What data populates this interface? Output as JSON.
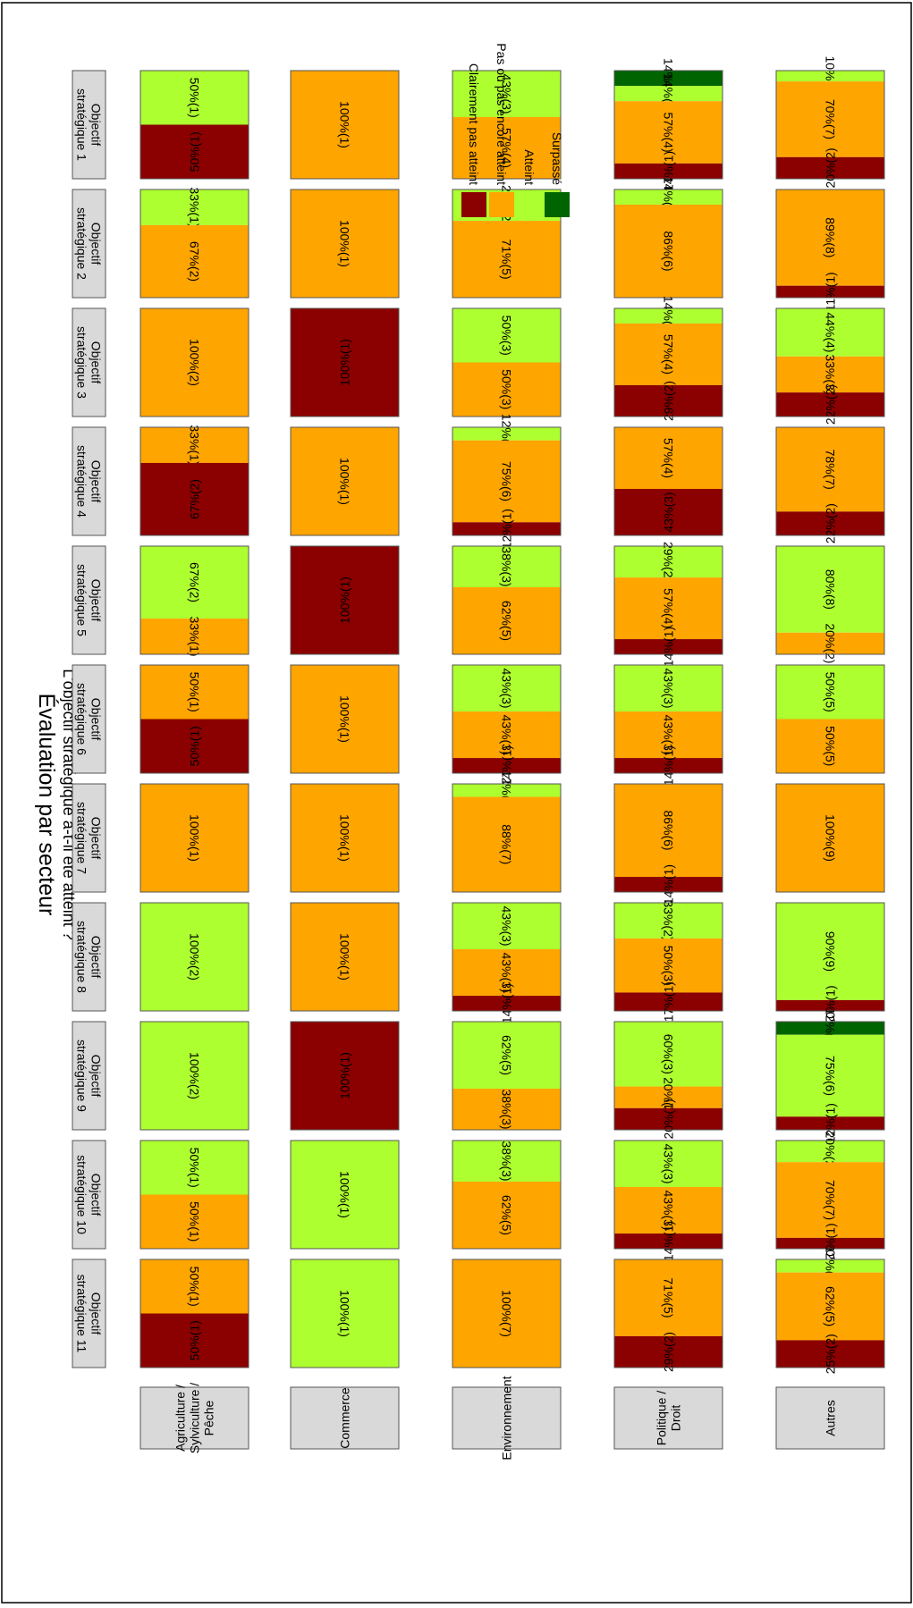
{
  "chart_data": {
    "type": "bar",
    "stacked": true,
    "normalized_percent": true,
    "title": "Évaluation par secteur",
    "subtitle": "L'objectif stratégique a-t-il été atteint ?",
    "legend": {
      "placement": "top-right",
      "items": [
        {
          "key": "surpasse",
          "label": "Surpassé",
          "color": "#006400"
        },
        {
          "key": "atteint",
          "label": "Atteint",
          "color": "#ADFF2F"
        },
        {
          "key": "pas",
          "label": "Pas ou pas encore atteint",
          "color": "#FFA500"
        },
        {
          "key": "clairement",
          "label": "Clairement pas atteint",
          "color": "#8B0000"
        }
      ]
    },
    "objectives": [
      "Objectif\nstratégique 1",
      "Objectif\nstratégique 2",
      "Objectif\nstratégique 3",
      "Objectif\nstratégique 4",
      "Objectif\nstratégique 5",
      "Objectif\nstratégique 6",
      "Objectif\nstratégique 7",
      "Objectif\nstratégique 8",
      "Objectif\nstratégique 9",
      "Objectif\nstratégique 10",
      "Objectif\nstratégique 11"
    ],
    "sectors": [
      {
        "name": "Agriculture /\nSylviculture /\nPêche",
        "cells": [
          [
            {
              "c": "atteint",
              "p": 50,
              "n": 1,
              "label": "50%(1)"
            },
            {
              "c": "clairement",
              "p": 50,
              "n": 1,
              "label": "50%(1)"
            }
          ],
          [
            {
              "c": "atteint",
              "p": 33,
              "n": 1,
              "label": "33%(1)"
            },
            {
              "c": "pas",
              "p": 67,
              "n": 2,
              "label": "67%(2)"
            }
          ],
          [
            {
              "c": "pas",
              "p": 100,
              "n": 2,
              "label": "100%(2)"
            }
          ],
          [
            {
              "c": "pas",
              "p": 33,
              "n": 1,
              "label": "33%(1)"
            },
            {
              "c": "clairement",
              "p": 67,
              "n": 2,
              "label": "67%(2)"
            }
          ],
          [
            {
              "c": "atteint",
              "p": 67,
              "n": 2,
              "label": "67%(2)"
            },
            {
              "c": "pas",
              "p": 33,
              "n": 1,
              "label": "33%(1)"
            }
          ],
          [
            {
              "c": "pas",
              "p": 50,
              "n": 1,
              "label": "50%(1)"
            },
            {
              "c": "clairement",
              "p": 50,
              "n": 1,
              "label": "50%(1)"
            }
          ],
          [
            {
              "c": "pas",
              "p": 100,
              "n": 1,
              "label": "100%(1)"
            }
          ],
          [
            {
              "c": "atteint",
              "p": 100,
              "n": 2,
              "label": "100%(2)"
            }
          ],
          [
            {
              "c": "atteint",
              "p": 100,
              "n": 2,
              "label": "100%(2)"
            }
          ],
          [
            {
              "c": "atteint",
              "p": 50,
              "n": 1,
              "label": "50%(1)"
            },
            {
              "c": "pas",
              "p": 50,
              "n": 1,
              "label": "50%(1)"
            }
          ],
          [
            {
              "c": "pas",
              "p": 50,
              "n": 1,
              "label": "50%(1)"
            },
            {
              "c": "clairement",
              "p": 50,
              "n": 1,
              "label": "50%(1)"
            }
          ]
        ]
      },
      {
        "name": "Commerce",
        "cells": [
          [
            {
              "c": "pas",
              "p": 100,
              "n": 1,
              "label": "100%(1)"
            }
          ],
          [
            {
              "c": "pas",
              "p": 100,
              "n": 1,
              "label": "100%(1)"
            }
          ],
          [
            {
              "c": "clairement",
              "p": 100,
              "n": 1,
              "label": "100%(1)"
            }
          ],
          [
            {
              "c": "pas",
              "p": 100,
              "n": 1,
              "label": "100%(1)"
            }
          ],
          [
            {
              "c": "clairement",
              "p": 100,
              "n": 1,
              "label": "100%(1)"
            }
          ],
          [
            {
              "c": "pas",
              "p": 100,
              "n": 1,
              "label": "100%(1)"
            }
          ],
          [
            {
              "c": "pas",
              "p": 100,
              "n": 1,
              "label": "100%(1)"
            }
          ],
          [
            {
              "c": "pas",
              "p": 100,
              "n": 1,
              "label": "100%(1)"
            }
          ],
          [
            {
              "c": "clairement",
              "p": 100,
              "n": 1,
              "label": "100%(1)"
            }
          ],
          [
            {
              "c": "atteint",
              "p": 100,
              "n": 1,
              "label": "100%(1)"
            }
          ],
          [
            {
              "c": "atteint",
              "p": 100,
              "n": 1,
              "label": "100%(1)"
            }
          ]
        ]
      },
      {
        "name": "Environnement",
        "cells": [
          [
            {
              "c": "atteint",
              "p": 43,
              "n": 3,
              "label": "43%(3)"
            },
            {
              "c": "pas",
              "p": 57,
              "n": 4,
              "label": "57%(4)"
            }
          ],
          [
            {
              "c": "atteint",
              "p": 29,
              "n": 2,
              "label": "29%(2)"
            },
            {
              "c": "pas",
              "p": 71,
              "n": 5,
              "label": "71%(5)"
            }
          ],
          [
            {
              "c": "atteint",
              "p": 50,
              "n": 3,
              "label": "50%(3)"
            },
            {
              "c": "pas",
              "p": 50,
              "n": 3,
              "label": "50%(3)"
            }
          ],
          [
            {
              "c": "atteint",
              "p": 12,
              "n": 1,
              "label": "12%(1)"
            },
            {
              "c": "pas",
              "p": 75,
              "n": 6,
              "label": "75%(6)"
            },
            {
              "c": "clairement",
              "p": 12,
              "n": 1,
              "label": "12%(1)"
            }
          ],
          [
            {
              "c": "atteint",
              "p": 38,
              "n": 3,
              "label": "38%(3)"
            },
            {
              "c": "pas",
              "p": 62,
              "n": 5,
              "label": "62%(5)"
            }
          ],
          [
            {
              "c": "atteint",
              "p": 43,
              "n": 3,
              "label": "43%(3)"
            },
            {
              "c": "pas",
              "p": 43,
              "n": 3,
              "label": "43%(3)"
            },
            {
              "c": "clairement",
              "p": 14,
              "n": 1,
              "label": "14%(1)"
            }
          ],
          [
            {
              "c": "atteint",
              "p": 12,
              "n": 1,
              "label": "12%(1)"
            },
            {
              "c": "pas",
              "p": 88,
              "n": 7,
              "label": "88%(7)"
            }
          ],
          [
            {
              "c": "atteint",
              "p": 43,
              "n": 3,
              "label": "43%(3)"
            },
            {
              "c": "pas",
              "p": 43,
              "n": 3,
              "label": "43%(3)"
            },
            {
              "c": "clairement",
              "p": 14,
              "n": 1,
              "label": "14%(1)"
            }
          ],
          [
            {
              "c": "atteint",
              "p": 62,
              "n": 5,
              "label": "62%(5)"
            },
            {
              "c": "pas",
              "p": 38,
              "n": 3,
              "label": "38%(3)"
            }
          ],
          [
            {
              "c": "atteint",
              "p": 38,
              "n": 3,
              "label": "38%(3)"
            },
            {
              "c": "pas",
              "p": 62,
              "n": 5,
              "label": "62%(5)"
            }
          ],
          [
            {
              "c": "pas",
              "p": 100,
              "n": 7,
              "label": "100%(7)"
            }
          ]
        ]
      },
      {
        "name": "Politique /\nDroit",
        "cells": [
          [
            {
              "c": "surpasse",
              "p": 14,
              "n": 1,
              "label": "14%(1)"
            },
            {
              "c": "atteint",
              "p": 14,
              "n": 1,
              "label": "14%(1)"
            },
            {
              "c": "pas",
              "p": 57,
              "n": 4,
              "label": "57%(4)"
            },
            {
              "c": "clairement",
              "p": 14,
              "n": 1,
              "label": "14%(1)"
            }
          ],
          [
            {
              "c": "atteint",
              "p": 14,
              "n": 1,
              "label": "14%(1)"
            },
            {
              "c": "pas",
              "p": 86,
              "n": 6,
              "label": "86%(6)"
            }
          ],
          [
            {
              "c": "atteint",
              "p": 14,
              "n": 1,
              "label": "14%(1)"
            },
            {
              "c": "pas",
              "p": 57,
              "n": 4,
              "label": "57%(4)"
            },
            {
              "c": "clairement",
              "p": 29,
              "n": 2,
              "label": "29%(2)"
            }
          ],
          [
            {
              "c": "pas",
              "p": 57,
              "n": 4,
              "label": "57%(4)"
            },
            {
              "c": "clairement",
              "p": 43,
              "n": 3,
              "label": "43%(3)"
            }
          ],
          [
            {
              "c": "atteint",
              "p": 29,
              "n": 2,
              "label": "29%(2)"
            },
            {
              "c": "pas",
              "p": 57,
              "n": 4,
              "label": "57%(4)"
            },
            {
              "c": "clairement",
              "p": 14,
              "n": 1,
              "label": "14%(1)"
            }
          ],
          [
            {
              "c": "atteint",
              "p": 43,
              "n": 3,
              "label": "43%(3)"
            },
            {
              "c": "pas",
              "p": 43,
              "n": 3,
              "label": "43%(3)"
            },
            {
              "c": "clairement",
              "p": 14,
              "n": 1,
              "label": "14%(1)"
            }
          ],
          [
            {
              "c": "pas",
              "p": 86,
              "n": 6,
              "label": "86%(6)"
            },
            {
              "c": "clairement",
              "p": 14,
              "n": 1,
              "label": "14%(1)"
            }
          ],
          [
            {
              "c": "atteint",
              "p": 33,
              "n": 2,
              "label": "33%(2)"
            },
            {
              "c": "pas",
              "p": 50,
              "n": 3,
              "label": "50%(3)"
            },
            {
              "c": "clairement",
              "p": 17,
              "n": 1,
              "label": "17%(1)"
            }
          ],
          [
            {
              "c": "atteint",
              "p": 60,
              "n": 3,
              "label": "60%(3)"
            },
            {
              "c": "pas",
              "p": 20,
              "n": 1,
              "label": "20%(1)"
            },
            {
              "c": "clairement",
              "p": 20,
              "n": 1,
              "label": "20%(1)"
            }
          ],
          [
            {
              "c": "atteint",
              "p": 43,
              "n": 3,
              "label": "43%(3)"
            },
            {
              "c": "pas",
              "p": 43,
              "n": 3,
              "label": "43%(3)"
            },
            {
              "c": "clairement",
              "p": 14,
              "n": 1,
              "label": "14%(1)"
            }
          ],
          [
            {
              "c": "pas",
              "p": 71,
              "n": 5,
              "label": "71%(5)"
            },
            {
              "c": "clairement",
              "p": 29,
              "n": 2,
              "label": "29%(2)"
            }
          ]
        ]
      },
      {
        "name": "Autres",
        "cells": [
          [
            {
              "c": "atteint",
              "p": 10,
              "n": 1,
              "label": "10%(1)"
            },
            {
              "c": "pas",
              "p": 70,
              "n": 7,
              "label": "70%(7)"
            },
            {
              "c": "clairement",
              "p": 20,
              "n": 2,
              "label": "20%(2)"
            }
          ],
          [
            {
              "c": "pas",
              "p": 89,
              "n": 8,
              "label": "89%(8)"
            },
            {
              "c": "clairement",
              "p": 11,
              "n": 1,
              "label": "11%(1)"
            }
          ],
          [
            {
              "c": "atteint",
              "p": 44,
              "n": 4,
              "label": "44%(4)"
            },
            {
              "c": "pas",
              "p": 33,
              "n": 3,
              "label": "33%(3)"
            },
            {
              "c": "clairement",
              "p": 22,
              "n": 2,
              "label": "22%(2)"
            }
          ],
          [
            {
              "c": "pas",
              "p": 78,
              "n": 7,
              "label": "78%(7)"
            },
            {
              "c": "clairement",
              "p": 22,
              "n": 2,
              "label": "22%(2)"
            }
          ],
          [
            {
              "c": "atteint",
              "p": 80,
              "n": 8,
              "label": "80%(8)"
            },
            {
              "c": "pas",
              "p": 20,
              "n": 2,
              "label": "20%(2)"
            }
          ],
          [
            {
              "c": "atteint",
              "p": 50,
              "n": 5,
              "label": "50%(5)"
            },
            {
              "c": "pas",
              "p": 50,
              "n": 5,
              "label": "50%(5)"
            }
          ],
          [
            {
              "c": "pas",
              "p": 100,
              "n": 9,
              "label": "100%(9)"
            }
          ],
          [
            {
              "c": "atteint",
              "p": 90,
              "n": 9,
              "label": "90%(9)"
            },
            {
              "c": "clairement",
              "p": 10,
              "n": 1,
              "label": "10%(1)"
            }
          ],
          [
            {
              "c": "surpasse",
              "p": 12,
              "n": 1,
              "label": "12%(1)"
            },
            {
              "c": "atteint",
              "p": 75,
              "n": 6,
              "label": "75%(6)"
            },
            {
              "c": "clairement",
              "p": 12,
              "n": 1,
              "label": "12%(1)"
            }
          ],
          [
            {
              "c": "atteint",
              "p": 20,
              "n": 2,
              "label": "20%(2)"
            },
            {
              "c": "pas",
              "p": 70,
              "n": 7,
              "label": "70%(7)"
            },
            {
              "c": "clairement",
              "p": 10,
              "n": 1,
              "label": "10%(1)"
            }
          ],
          [
            {
              "c": "atteint",
              "p": 12,
              "n": 1,
              "label": "12%(1)"
            },
            {
              "c": "pas",
              "p": 62,
              "n": 5,
              "label": "62%(5)"
            },
            {
              "c": "clairement",
              "p": 25,
              "n": 2,
              "label": "25%(2)"
            }
          ]
        ]
      }
    ]
  }
}
